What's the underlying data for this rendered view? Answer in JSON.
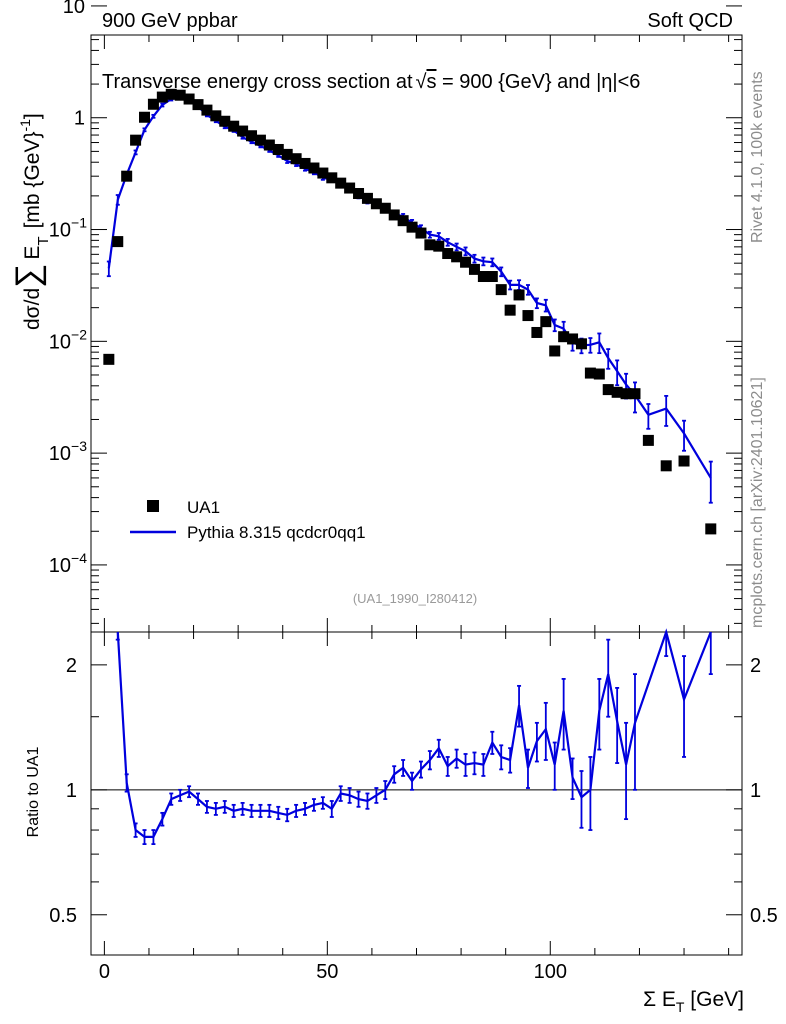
{
  "header": {
    "left": "900 GeV ppbar",
    "right": "Soft QCD"
  },
  "side_labels": {
    "rivet": "Rivet 4.1.0,  100k events",
    "mcplots": "mcplots.cern.ch [arXiv:2401.10621]"
  },
  "analysis_id": "(UA1_1990_I280412)",
  "chart_data": [
    {
      "type": "scatter",
      "panel": "main",
      "title": "Transverse energy cross section at √s = 900 {GeV} and |η|<6",
      "title_parts": {
        "before": "Transverse energy cross section at",
        "sqrt": "√",
        "s": "s",
        "after": " = 900 {GeV} and |η|<6"
      },
      "ylabel": "dσ/d∑ E_T [mb {GeV}^-1]",
      "ylabel_parts": {
        "a": "dσ/d",
        "sum": "∑",
        "e": "E",
        "t": "T",
        "unit": "[mb {GeV}",
        "exp": "-1",
        "close": "]"
      },
      "yscale": "log",
      "xlim": [
        -3,
        143
      ],
      "ylim_log10": [
        -4.6,
        0.74
      ],
      "yticks": [
        {
          "value": 10,
          "base": "10",
          "exp": ""
        },
        {
          "value": 1,
          "base": "1",
          "exp": ""
        },
        {
          "value": 0.1,
          "base": "10",
          "exp": "−1"
        },
        {
          "value": 0.01,
          "base": "10",
          "exp": "−2"
        },
        {
          "value": 0.001,
          "base": "10",
          "exp": "−3"
        },
        {
          "value": 0.0001,
          "base": "10",
          "exp": "−4"
        }
      ],
      "legend": {
        "location": "bottom-left",
        "entries": [
          {
            "label": "UA1",
            "marker": "square",
            "color": "#000000"
          },
          {
            "label": "Pythia 8.315 qcdcr0qq1",
            "marker": "line",
            "color": "#0000dd"
          }
        ]
      },
      "series": [
        {
          "name": "UA1",
          "color": "#000000",
          "x": [
            1,
            3,
            5,
            7,
            9,
            11,
            13,
            15,
            17,
            19,
            21,
            23,
            25,
            27,
            29,
            31,
            33,
            35,
            37,
            39,
            41,
            43,
            45,
            47,
            49,
            51,
            53,
            55,
            57,
            59,
            61,
            63,
            65,
            67,
            69,
            71,
            73,
            75,
            77,
            79,
            81,
            83,
            85,
            87,
            89,
            91,
            93,
            95,
            97,
            99,
            101,
            103,
            105,
            107,
            109,
            111,
            113,
            115,
            117,
            119,
            122,
            126,
            130,
            136
          ],
          "y": [
            0.0069,
            0.078,
            0.3,
            0.63,
            1.01,
            1.32,
            1.53,
            1.62,
            1.59,
            1.47,
            1.31,
            1.17,
            1.04,
            0.93,
            0.84,
            0.76,
            0.69,
            0.63,
            0.57,
            0.52,
            0.47,
            0.43,
            0.39,
            0.355,
            0.32,
            0.29,
            0.26,
            0.235,
            0.21,
            0.19,
            0.17,
            0.155,
            0.135,
            0.12,
            0.105,
            0.093,
            0.073,
            0.071,
            0.061,
            0.057,
            0.051,
            0.044,
            0.038,
            0.038,
            0.029,
            0.019,
            0.026,
            0.017,
            0.012,
            0.015,
            0.0082,
            0.011,
            0.0105,
            0.0095,
            0.0052,
            0.0051,
            0.0037,
            0.0035,
            0.0034,
            0.0034,
            0.0013,
            0.00077,
            0.00085,
            0.00021
          ]
        },
        {
          "name": "Pythia 8.315 qcdcr0qq1",
          "color": "#0000dd",
          "x": [
            1,
            3,
            5,
            7,
            9,
            11,
            13,
            15,
            17,
            19,
            21,
            23,
            25,
            27,
            29,
            31,
            33,
            35,
            37,
            39,
            41,
            43,
            45,
            47,
            49,
            51,
            53,
            55,
            57,
            59,
            61,
            63,
            65,
            67,
            69,
            71,
            73,
            75,
            77,
            79,
            81,
            83,
            85,
            87,
            89,
            91,
            93,
            95,
            97,
            99,
            101,
            103,
            105,
            107,
            109,
            111,
            113,
            115,
            117,
            119,
            122,
            126,
            130,
            136
          ],
          "y": [
            0.045,
            0.185,
            0.31,
            0.49,
            0.78,
            1.03,
            1.3,
            1.47,
            1.54,
            1.5,
            1.26,
            1.06,
            0.94,
            0.83,
            0.77,
            0.67,
            0.61,
            0.56,
            0.51,
            0.46,
            0.41,
            0.385,
            0.35,
            0.325,
            0.29,
            0.28,
            0.255,
            0.23,
            0.2,
            0.18,
            0.165,
            0.155,
            0.14,
            0.13,
            0.115,
            0.103,
            0.09,
            0.087,
            0.077,
            0.07,
            0.064,
            0.055,
            0.052,
            0.051,
            0.042,
            0.032,
            0.032,
            0.029,
            0.022,
            0.021,
            0.014,
            0.013,
            0.0097,
            0.0092,
            0.0093,
            0.0098,
            0.0071,
            0.0054,
            0.0041,
            0.0033,
            0.0022,
            0.0025,
            0.0015,
            0.0006
          ],
          "err_rel": [
            0.15,
            0.1,
            0.05,
            0.04,
            0.03,
            0.03,
            0.03,
            0.03,
            0.03,
            0.03,
            0.03,
            0.03,
            0.03,
            0.03,
            0.03,
            0.03,
            0.03,
            0.03,
            0.03,
            0.03,
            0.04,
            0.04,
            0.04,
            0.04,
            0.04,
            0.04,
            0.04,
            0.05,
            0.05,
            0.05,
            0.05,
            0.05,
            0.05,
            0.06,
            0.06,
            0.06,
            0.06,
            0.07,
            0.07,
            0.07,
            0.08,
            0.08,
            0.08,
            0.08,
            0.09,
            0.09,
            0.1,
            0.1,
            0.1,
            0.12,
            0.12,
            0.15,
            0.15,
            0.15,
            0.15,
            0.2,
            0.2,
            0.25,
            0.25,
            0.3,
            0.25,
            0.3,
            0.3,
            0.4
          ]
        }
      ]
    },
    {
      "type": "line",
      "panel": "ratio",
      "ylabel": "Ratio to UA1",
      "xlabel": "Σ E_T [GeV]",
      "xlabel_parts": {
        "pre": "Σ E",
        "sub": "T",
        "post": " [GeV]"
      },
      "yscale": "log",
      "xlim": [
        -3,
        143
      ],
      "ylim": [
        0.4,
        2.4
      ],
      "reference_line": 1,
      "xticks": [
        0,
        50,
        100
      ],
      "yticks": [
        0.5,
        1,
        2
      ],
      "series": [
        {
          "name": "Pythia 8.315 qcdcr0qq1 / UA1",
          "color": "#0000dd",
          "x": [
            3,
            5,
            7,
            9,
            11,
            13,
            15,
            17,
            19,
            21,
            23,
            25,
            27,
            29,
            31,
            33,
            35,
            37,
            39,
            41,
            43,
            45,
            47,
            49,
            51,
            53,
            55,
            57,
            59,
            61,
            63,
            65,
            67,
            69,
            71,
            73,
            75,
            77,
            79,
            81,
            83,
            85,
            87,
            89,
            91,
            93,
            95,
            97,
            99,
            101,
            103,
            105,
            107,
            109,
            111,
            113,
            115,
            117,
            119,
            126,
            130,
            136
          ],
          "y": [
            2.4,
            1.04,
            0.8,
            0.77,
            0.77,
            0.85,
            0.95,
            0.97,
            0.99,
            0.95,
            0.91,
            0.9,
            0.91,
            0.89,
            0.9,
            0.89,
            0.89,
            0.89,
            0.88,
            0.87,
            0.89,
            0.9,
            0.92,
            0.93,
            0.9,
            0.98,
            0.97,
            0.95,
            0.94,
            0.97,
            1.0,
            1.09,
            1.13,
            1.05,
            1.12,
            1.18,
            1.26,
            1.14,
            1.19,
            1.15,
            1.16,
            1.15,
            1.3,
            1.2,
            1.18,
            1.6,
            1.13,
            1.31,
            1.4,
            1.15,
            1.55,
            1.07,
            0.96,
            1.0,
            1.55,
            1.9,
            1.46,
            1.15,
            1.45,
            2.5,
            1.65,
            2.4
          ],
          "err": [
            0.1,
            0.05,
            0.03,
            0.03,
            0.03,
            0.03,
            0.03,
            0.03,
            0.03,
            0.03,
            0.03,
            0.03,
            0.03,
            0.03,
            0.03,
            0.03,
            0.03,
            0.03,
            0.03,
            0.03,
            0.03,
            0.03,
            0.03,
            0.03,
            0.04,
            0.04,
            0.04,
            0.04,
            0.04,
            0.04,
            0.05,
            0.05,
            0.05,
            0.05,
            0.05,
            0.06,
            0.06,
            0.06,
            0.06,
            0.07,
            0.07,
            0.07,
            0.08,
            0.08,
            0.08,
            0.18,
            0.12,
            0.14,
            0.22,
            0.15,
            0.3,
            0.12,
            0.15,
            0.2,
            0.3,
            0.4,
            0.3,
            0.3,
            0.45,
            0.4,
            0.45,
            0.5
          ]
        }
      ]
    }
  ]
}
